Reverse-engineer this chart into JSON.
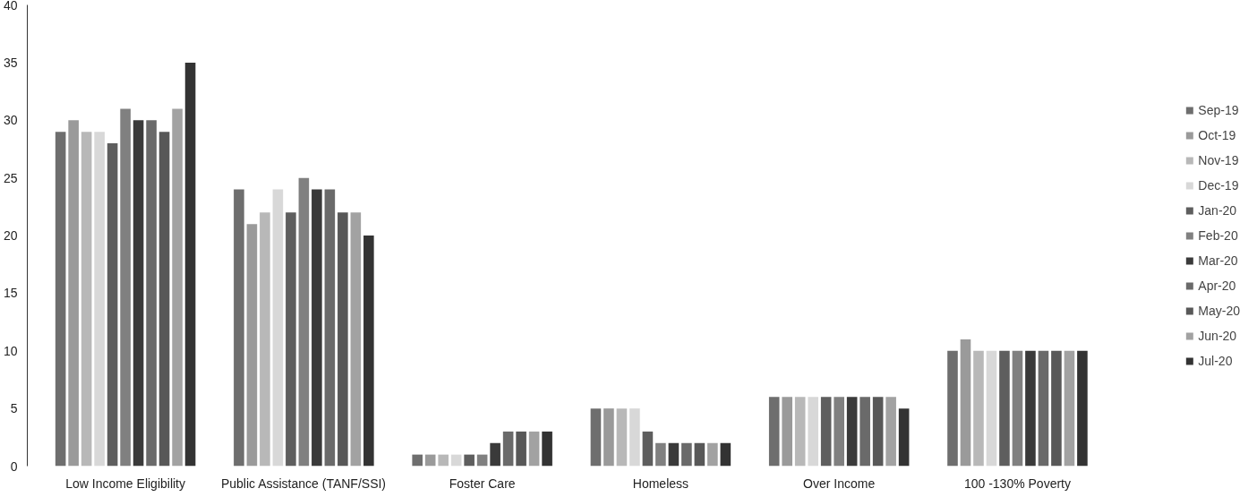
{
  "chart_data": {
    "type": "bar",
    "categories": [
      "Low Income Eligibility",
      "Public Assistance (TANF/SSI)",
      "Foster Care",
      "Homeless",
      "Over Income",
      "100 -130% Poverty"
    ],
    "series": [
      {
        "name": "Sep-19",
        "color": "#6e6e6e",
        "values": [
          29,
          24,
          1,
          5,
          6,
          10
        ]
      },
      {
        "name": "Oct-19",
        "color": "#9a9a9a",
        "values": [
          30,
          21,
          1,
          5,
          6,
          11
        ]
      },
      {
        "name": "Nov-19",
        "color": "#b8b8b8",
        "values": [
          29,
          22,
          1,
          5,
          6,
          10
        ]
      },
      {
        "name": "Dec-19",
        "color": "#d8d8d8",
        "values": [
          29,
          24,
          1,
          5,
          6,
          10
        ]
      },
      {
        "name": "Jan-20",
        "color": "#5e5e5e",
        "values": [
          28,
          22,
          1,
          3,
          6,
          10
        ]
      },
      {
        "name": "Feb-20",
        "color": "#808080",
        "values": [
          31,
          25,
          1,
          2,
          6,
          10
        ]
      },
      {
        "name": "Mar-20",
        "color": "#3a3a3a",
        "values": [
          30,
          24,
          2,
          2,
          6,
          10
        ]
      },
      {
        "name": "Apr-20",
        "color": "#6a6a6a",
        "values": [
          30,
          24,
          3,
          2,
          6,
          10
        ]
      },
      {
        "name": "May-20",
        "color": "#585858",
        "values": [
          29,
          22,
          3,
          2,
          6,
          10
        ]
      },
      {
        "name": "Jun-20",
        "color": "#a2a2a2",
        "values": [
          31,
          22,
          3,
          2,
          6,
          10
        ]
      },
      {
        "name": "Jul-20",
        "color": "#333333",
        "values": [
          35,
          20,
          3,
          2,
          5,
          10
        ]
      }
    ],
    "ylim": [
      0,
      40
    ],
    "yticks": [
      0,
      5,
      10,
      15,
      20,
      25,
      30,
      35,
      40
    ],
    "grid": false,
    "legend": "right"
  }
}
